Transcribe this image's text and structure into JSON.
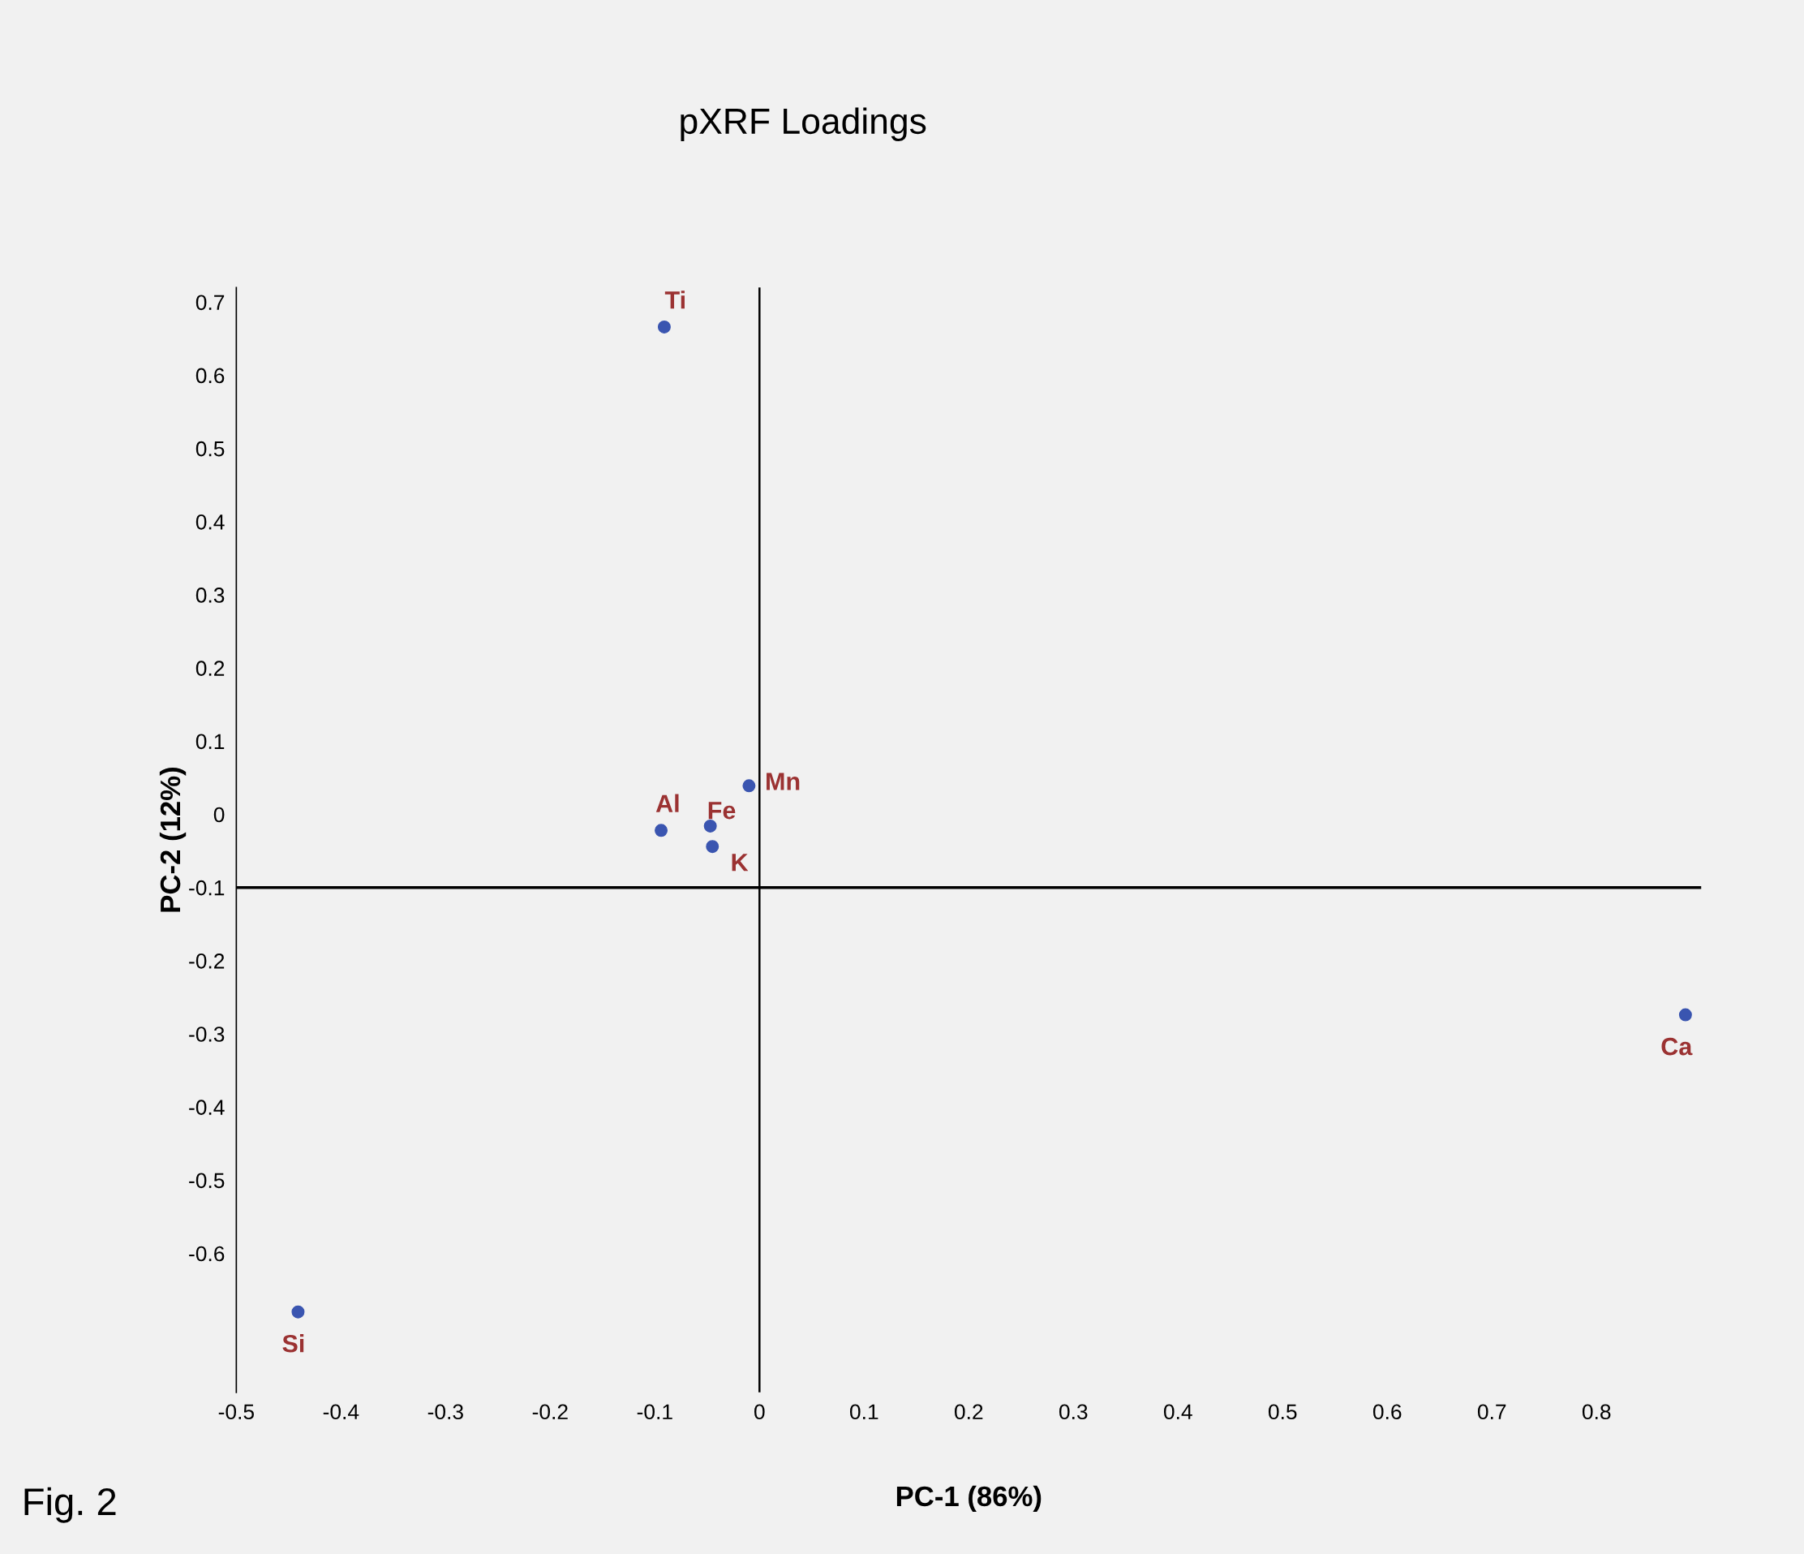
{
  "chart_data": {
    "type": "scatter",
    "title": "pXRF Loadings",
    "xlabel": "PC-1 (86%)",
    "ylabel": "PC-2 (12%)",
    "x": [
      -0.091,
      -0.094,
      -0.047,
      -0.045,
      -0.01,
      0.885,
      -0.441
    ],
    "series": [
      {
        "color": "#3a55b0",
        "values": [
          0.666,
          -0.022,
          -0.016,
          -0.044,
          0.039,
          -0.274,
          -0.68
        ]
      }
    ],
    "marker": "circle",
    "xlim": [
      -0.5,
      0.9
    ],
    "ylim": [
      -0.79,
      0.72
    ],
    "xticks": [
      -0.5,
      -0.4,
      -0.3,
      -0.2,
      -0.1,
      0,
      0.1,
      0.2,
      0.3,
      0.4,
      0.5,
      0.6,
      0.7,
      0.8
    ],
    "yticks": [
      0.7,
      0.6,
      0.5,
      0.4,
      0.3,
      0.2,
      0.1,
      0,
      -0.1,
      -0.2,
      -0.3,
      -0.4,
      -0.5,
      -0.6
    ],
    "ref_lines": [
      {
        "axis": "y",
        "value": -0.1,
        "color": "#000000"
      },
      {
        "axis": "x",
        "value": 0,
        "color": "#000000"
      }
    ],
    "grid": false,
    "legend": false,
    "annotations": [
      {
        "text": "Ti",
        "x": -0.091,
        "y": 0.666
      },
      {
        "text": "Al",
        "x": -0.094,
        "y": -0.022
      },
      {
        "text": "Fe",
        "x": -0.047,
        "y": -0.016
      },
      {
        "text": "K",
        "x": -0.045,
        "y": -0.044
      },
      {
        "text": "Mn",
        "x": -0.01,
        "y": 0.039
      },
      {
        "text": "Ca",
        "x": 0.885,
        "y": -0.274
      },
      {
        "text": "Si",
        "x": -0.441,
        "y": -0.68
      },
      "Fig. 2"
    ]
  }
}
